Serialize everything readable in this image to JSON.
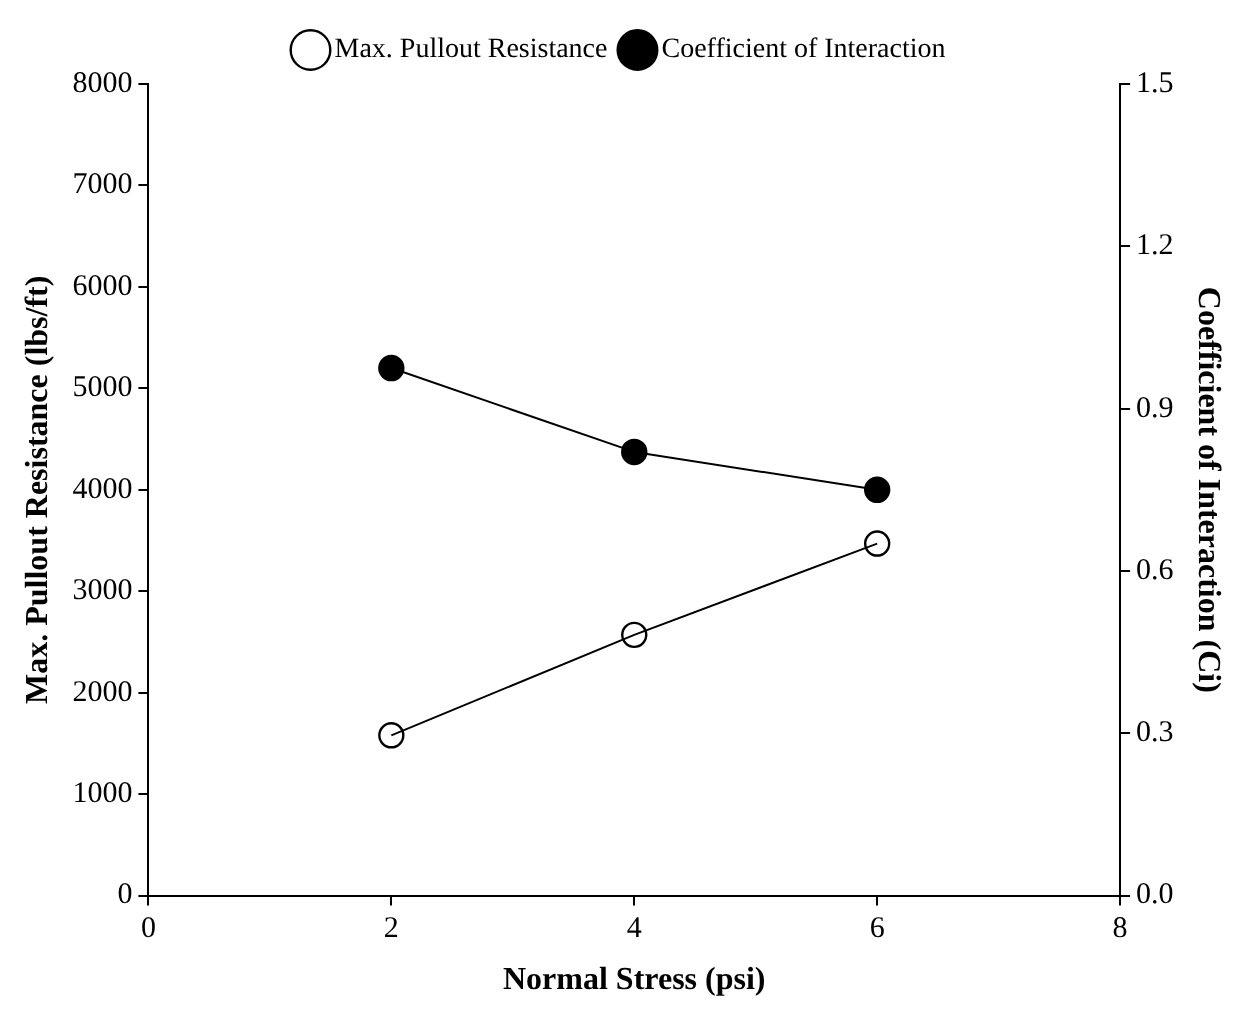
{
  "chart_data": {
    "type": "line",
    "xlabel": "Normal Stress (psi)",
    "ylabel": "Max. Pullout Resistance (lbs/ft)",
    "y2label": "Coefficient of Interaction (Ci)",
    "x": [
      2,
      4,
      6
    ],
    "series": [
      {
        "name": "Max. Pullout Resistance",
        "color": "#000000",
        "values": [
          1580,
          2570,
          3470
        ]
      },
      {
        "name": "Coefficient of Interaction",
        "color": "#000000",
        "values": [
          0.975,
          0.82,
          0.75
        ],
        "axis": "y2"
      }
    ],
    "xlim": [
      0,
      8
    ],
    "xticks": [
      0,
      2,
      4,
      6,
      8
    ],
    "ylim": [
      0,
      8000
    ],
    "yticks": [
      0,
      1000,
      2000,
      3000,
      4000,
      5000,
      6000,
      7000,
      8000
    ],
    "y2lim": [
      0,
      1.5
    ],
    "y2ticks": [
      {
        "value": 0,
        "label": "0.0"
      },
      {
        "value": 0.3,
        "label": "0.3"
      },
      {
        "value": 0.6,
        "label": "0.6"
      },
      {
        "value": 0.9,
        "label": "0.9"
      },
      {
        "value": 1.2,
        "label": "1.2"
      },
      {
        "value": 1.5,
        "label": "1.5"
      }
    ],
    "grid": false,
    "legend": "top",
    "marker": "circle",
    "line_style": "solid"
  }
}
